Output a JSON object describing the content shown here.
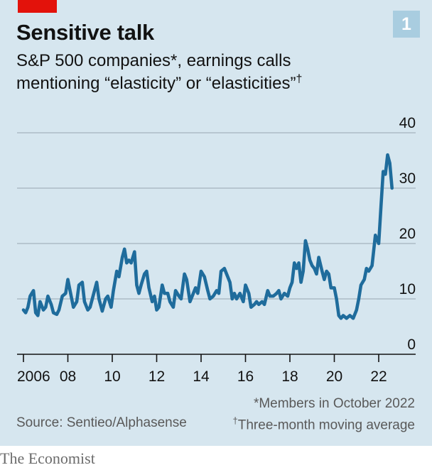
{
  "header": {
    "title": "Sensitive talk",
    "chart_number": "1",
    "subtitle_line1": "S&P 500 companies*, earnings calls",
    "subtitle_line2": "mentioning “elasticity” or “elasticities”",
    "subtitle_mark": "†"
  },
  "footer": {
    "note1": "*Members in October 2022",
    "note2_mark": "†",
    "note2": "Three-month moving average",
    "source": "Source: Sentieo/Alphasense",
    "brand": "The Economist"
  },
  "colors": {
    "line": "#1f6c9c",
    "accent": "#e3120b",
    "background": "#d6e6ef",
    "badge": "#a9cde0"
  },
  "chart_data": {
    "type": "line",
    "title": "Sensitive talk",
    "ylim": [
      0,
      40
    ],
    "yticks": [
      0,
      10,
      20,
      30,
      40
    ],
    "y_axis_side": "right",
    "xlim": [
      2005.85,
      2023.1
    ],
    "xticks": [
      {
        "value": 2006,
        "label": "2006"
      },
      {
        "value": 2008,
        "label": "08"
      },
      {
        "value": 2010,
        "label": "10"
      },
      {
        "value": 2012,
        "label": "12"
      },
      {
        "value": 2014,
        "label": "14"
      },
      {
        "value": 2016,
        "label": "16"
      },
      {
        "value": 2018,
        "label": "18"
      },
      {
        "value": 2020,
        "label": "20"
      },
      {
        "value": 2022,
        "label": "22"
      }
    ],
    "grid": true,
    "series": [
      {
        "x": [
          2006.0,
          2006.1,
          2006.2,
          2006.3,
          2006.45,
          2006.55,
          2006.65,
          2006.75,
          2006.9,
          2007.0,
          2007.1,
          2007.25,
          2007.35,
          2007.5,
          2007.6,
          2007.75,
          2007.9,
          2008.0,
          2008.1,
          2008.25,
          2008.4,
          2008.5,
          2008.65,
          2008.75,
          2008.9,
          2009.0,
          2009.1,
          2009.3,
          2009.4,
          2009.55,
          2009.7,
          2009.8,
          2009.95,
          2010.05,
          2010.2,
          2010.3,
          2010.45,
          2010.55,
          2010.65,
          2010.75,
          2010.85,
          2011.0,
          2011.1,
          2011.2,
          2011.3,
          2011.45,
          2011.55,
          2011.65,
          2011.8,
          2011.9,
          2012.0,
          2012.1,
          2012.25,
          2012.35,
          2012.5,
          2012.6,
          2012.75,
          2012.85,
          2013.0,
          2013.1,
          2013.25,
          2013.35,
          2013.5,
          2013.6,
          2013.75,
          2013.85,
          2014.0,
          2014.15,
          2014.3,
          2014.4,
          2014.55,
          2014.7,
          2014.8,
          2014.9,
          2015.05,
          2015.15,
          2015.3,
          2015.4,
          2015.5,
          2015.6,
          2015.75,
          2015.9,
          2016.0,
          2016.15,
          2016.25,
          2016.4,
          2016.5,
          2016.6,
          2016.75,
          2016.85,
          2017.0,
          2017.1,
          2017.25,
          2017.4,
          2017.5,
          2017.6,
          2017.75,
          2017.9,
          2018.0,
          2018.1,
          2018.2,
          2018.3,
          2018.4,
          2018.5,
          2018.6,
          2018.7,
          2018.8,
          2018.9,
          2019.0,
          2019.1,
          2019.2,
          2019.3,
          2019.45,
          2019.55,
          2019.65,
          2019.75,
          2019.85,
          2020.0,
          2020.1,
          2020.2,
          2020.3,
          2020.4,
          2020.55,
          2020.7,
          2020.85,
          2021.0,
          2021.1,
          2021.2,
          2021.35,
          2021.45,
          2021.55,
          2021.7,
          2021.85,
          2022.0,
          2022.1,
          2022.2,
          2022.3,
          2022.4,
          2022.5,
          2022.6
        ],
        "values": [
          8.0,
          7.5,
          8.5,
          10.5,
          11.5,
          7.5,
          7.0,
          9.5,
          8.0,
          8.5,
          10.5,
          9.0,
          7.5,
          7.2,
          8.0,
          10.5,
          11.0,
          13.5,
          11.5,
          8.5,
          9.5,
          12.5,
          13.0,
          9.5,
          8.0,
          8.5,
          10.0,
          13.0,
          10.0,
          7.8,
          10.0,
          10.5,
          8.5,
          11.5,
          15.0,
          14.0,
          17.5,
          19.0,
          16.5,
          17.0,
          16.5,
          18.5,
          12.5,
          11.0,
          12.5,
          14.5,
          15.0,
          12.0,
          9.5,
          10.5,
          8.0,
          8.5,
          12.5,
          11.0,
          11.0,
          9.5,
          8.5,
          11.5,
          10.5,
          10.0,
          14.5,
          13.5,
          9.5,
          10.5,
          12.0,
          11.0,
          15.0,
          14.0,
          11.5,
          10.0,
          10.5,
          11.5,
          11.0,
          15.0,
          15.5,
          14.5,
          13.0,
          10.0,
          11.0,
          10.0,
          11.0,
          9.5,
          12.5,
          11.0,
          8.5,
          9.0,
          9.5,
          9.0,
          9.5,
          9.0,
          11.5,
          10.5,
          10.5,
          11.0,
          11.5,
          10.0,
          11.0,
          10.5,
          12.0,
          13.0,
          16.5,
          15.5,
          16.5,
          13.0,
          15.0,
          20.5,
          19.0,
          17.0,
          16.0,
          15.5,
          14.5,
          17.5,
          15.0,
          13.5,
          15.0,
          14.5,
          12.0,
          12.0,
          10.0,
          7.0,
          6.5,
          7.0,
          6.5,
          7.0,
          6.5,
          8.0,
          10.0,
          12.5,
          13.5,
          15.5,
          15.0,
          16.0,
          21.5,
          20.0,
          26.5,
          33.0,
          32.5,
          36.0,
          34.5,
          30.0
        ]
      }
    ]
  }
}
